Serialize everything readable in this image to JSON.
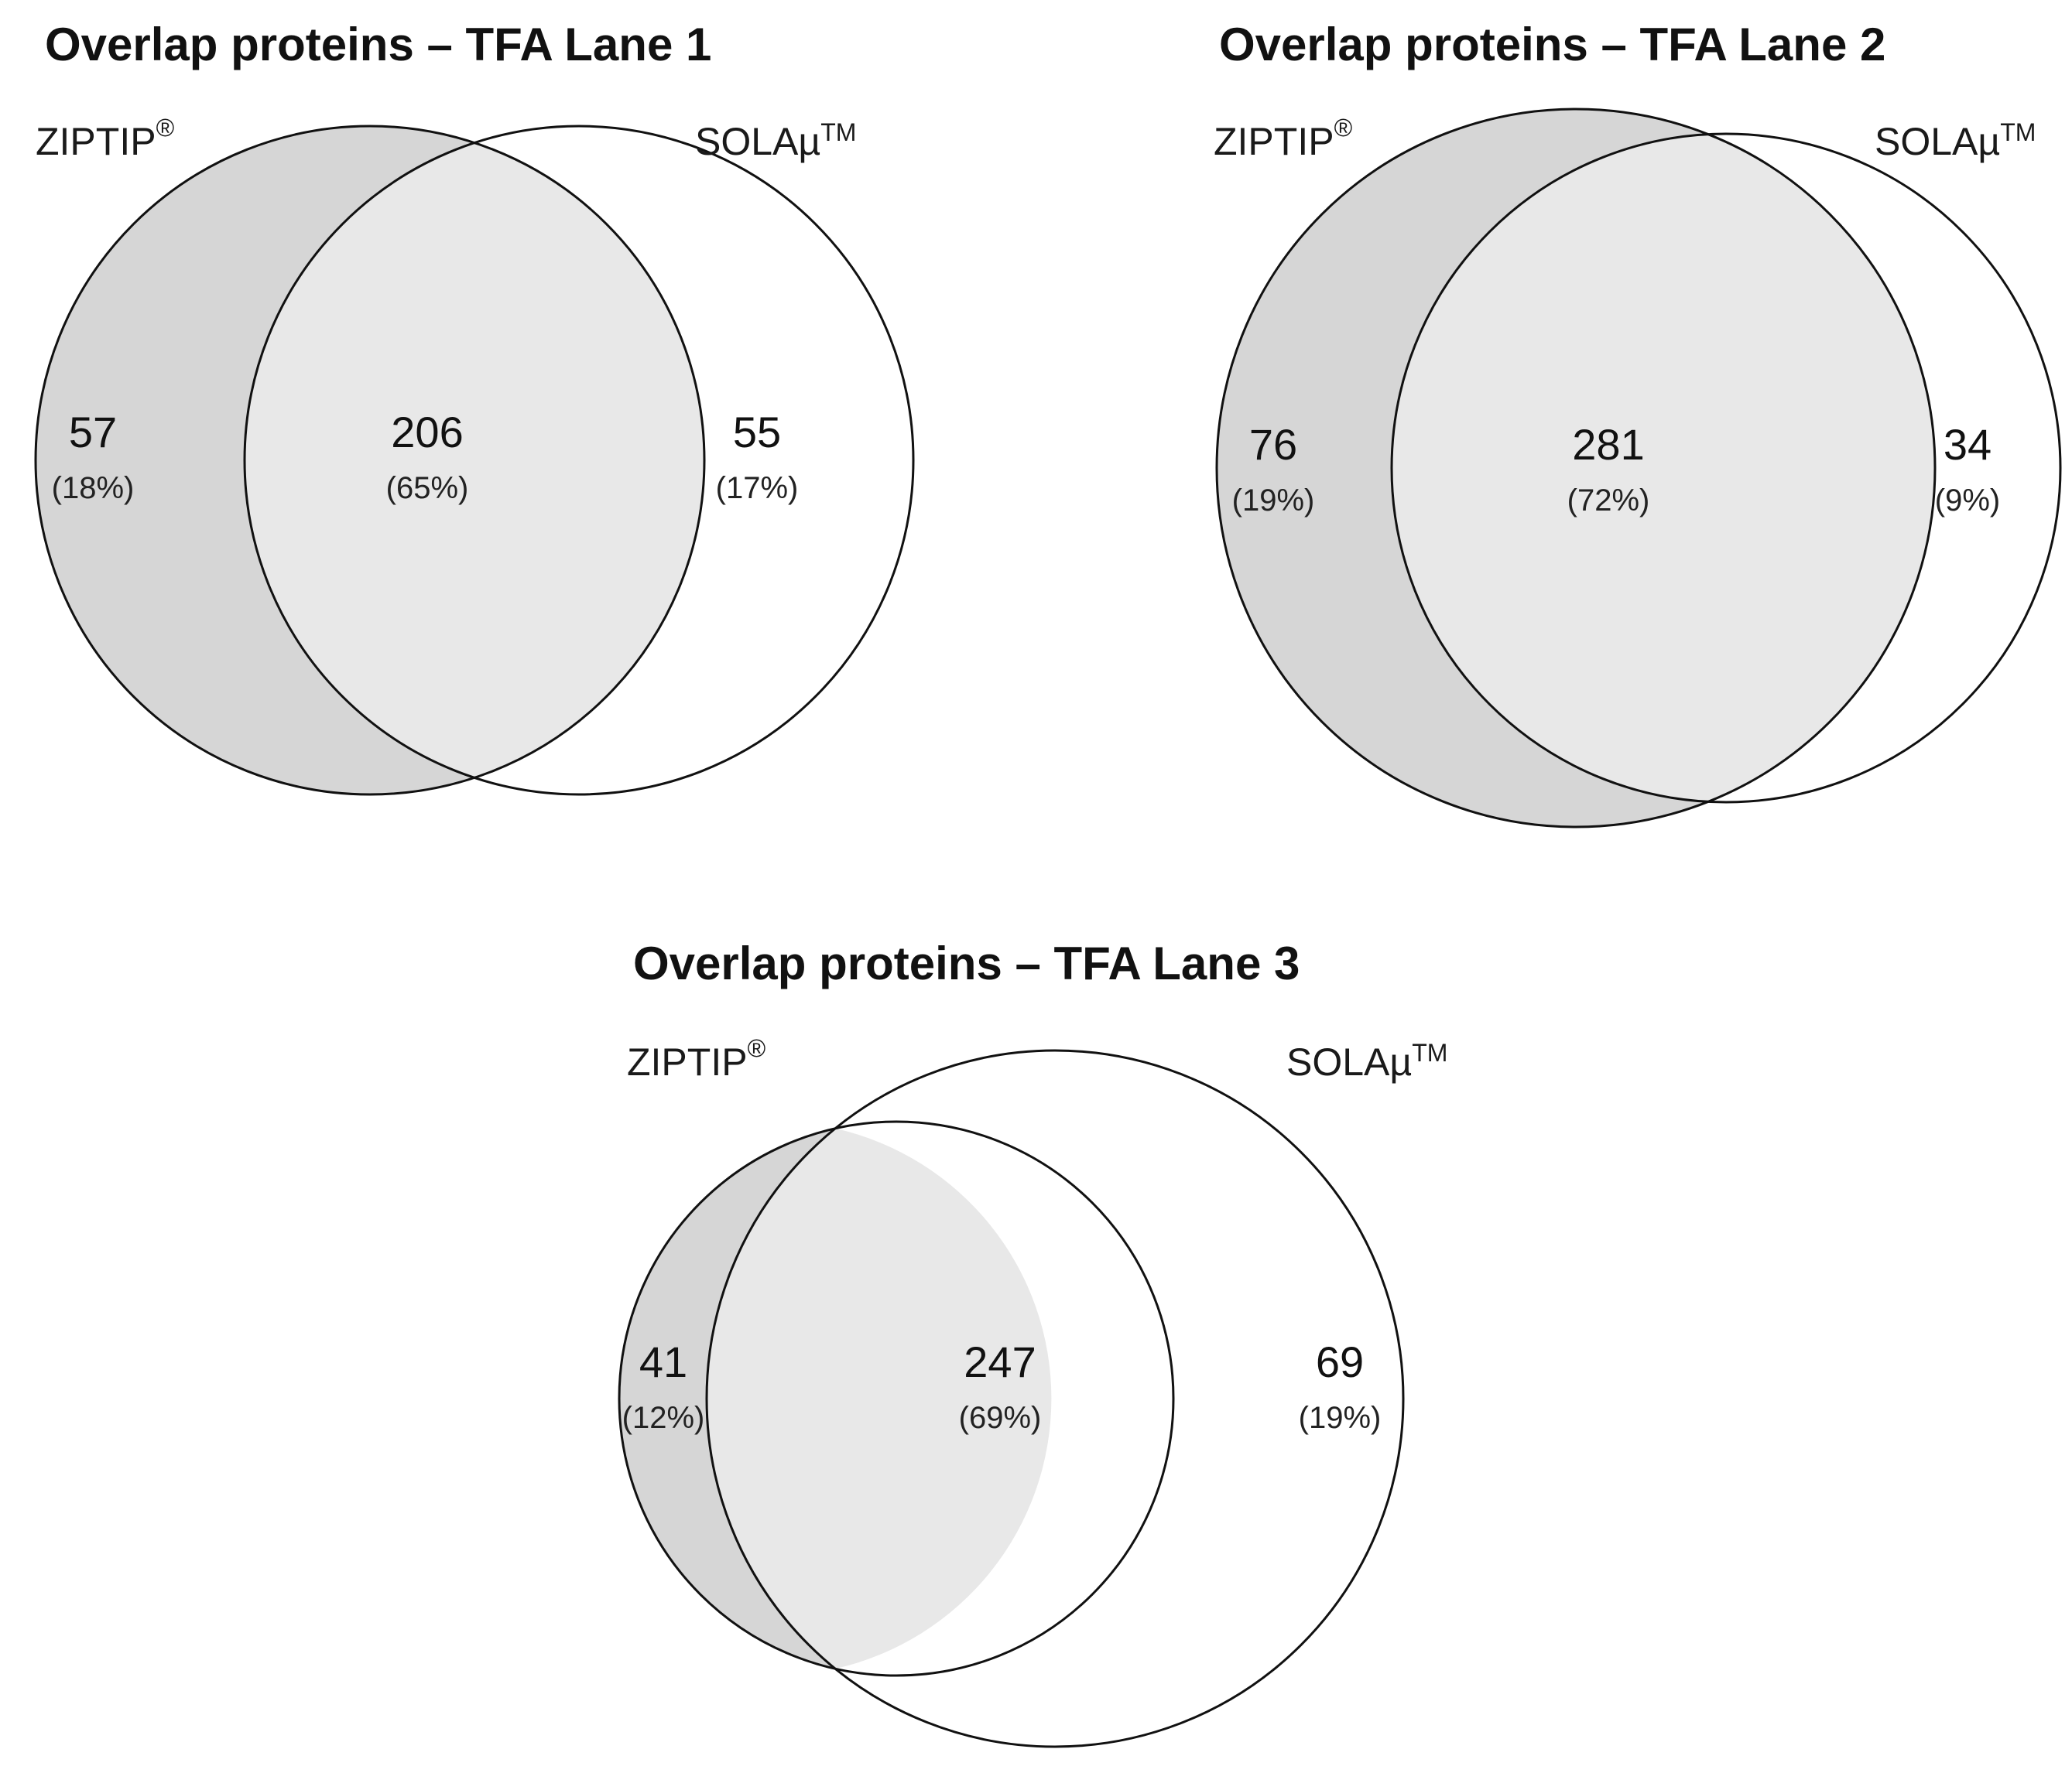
{
  "chart_data": [
    {
      "type": "venn",
      "title": "Overlap proteins – TFA Lane 1",
      "sets": [
        {
          "name": "ZIPTIP",
          "mark": "®"
        },
        {
          "name": "SOLAµ",
          "mark": "TM"
        }
      ],
      "regions": {
        "left_only": {
          "count": "57",
          "percent": "(18%)"
        },
        "overlap": {
          "count": "206",
          "percent": "(65%)"
        },
        "right_only": {
          "count": "55",
          "percent": "(17%)"
        }
      },
      "colors": {
        "left_only": "#d6d6d6",
        "overlap": "#e8e8e8",
        "right_only": "#ffffff",
        "stroke": "#111111"
      }
    },
    {
      "type": "venn",
      "title": "Overlap proteins – TFA Lane 2",
      "sets": [
        {
          "name": "ZIPTIP",
          "mark": "®"
        },
        {
          "name": "SOLAµ",
          "mark": "TM"
        }
      ],
      "regions": {
        "left_only": {
          "count": "76",
          "percent": "(19%)"
        },
        "overlap": {
          "count": "281",
          "percent": "(72%)"
        },
        "right_only": {
          "count": "34",
          "percent": "(9%)"
        }
      },
      "colors": {
        "left_only": "#d6d6d6",
        "overlap": "#e8e8e8",
        "right_only": "#ffffff",
        "stroke": "#111111"
      }
    },
    {
      "type": "venn",
      "title": "Overlap proteins – TFA Lane 3",
      "sets": [
        {
          "name": "ZIPTIP",
          "mark": "®"
        },
        {
          "name": "SOLAµ",
          "mark": "TM"
        }
      ],
      "regions": {
        "left_only": {
          "count": "41",
          "percent": "(12%)"
        },
        "overlap": {
          "count": "247",
          "percent": "(69%)"
        },
        "right_only": {
          "count": "69",
          "percent": "(19%)"
        }
      },
      "colors": {
        "left_only": "#d6d6d6",
        "overlap": "#e8e8e8",
        "right_only": "#ffffff",
        "stroke": "#111111"
      }
    }
  ]
}
